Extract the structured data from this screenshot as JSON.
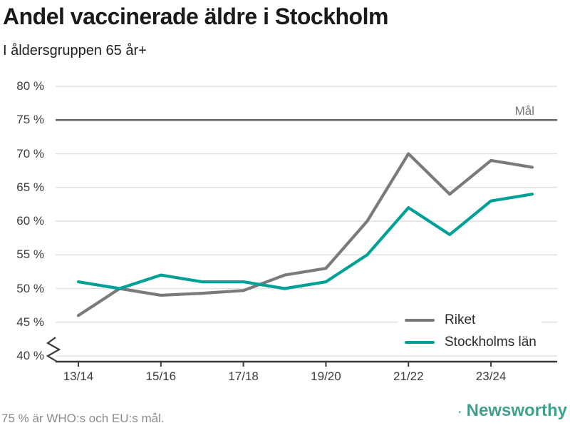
{
  "page": {
    "background": "#ffffff"
  },
  "header": {
    "title": "Andel vaccinerade äldre i Stockholm",
    "subtitle": "I åldersgruppen 65 år+"
  },
  "chart_data": {
    "type": "line",
    "title": "Andel vaccinerade äldre i Stockholm",
    "subtitle": "I åldersgruppen 65 år+",
    "x": [
      "13/14",
      "14/15",
      "15/16",
      "16/17",
      "17/18",
      "18/19",
      "19/20",
      "20/21",
      "21/22",
      "22/23",
      "23/24",
      "24/25"
    ],
    "x_axis": {
      "tick_labels": [
        "13/14",
        "15/16",
        "17/18",
        "19/20",
        "21/22",
        "23/24"
      ],
      "tick_indices": [
        0,
        2,
        4,
        6,
        8,
        10
      ],
      "axis_break_symbol": true
    },
    "y_axis": {
      "ticks": [
        80,
        75,
        70,
        65,
        60,
        55,
        50,
        45,
        40
      ],
      "tick_labels": [
        "80 %",
        "75 %",
        "70 %",
        "65 %",
        "60 %",
        "55 %",
        "50 %",
        "45 %",
        "40 %"
      ],
      "range": [
        40,
        80
      ]
    },
    "series": [
      {
        "name": "Riket",
        "color": "#7a7a7a",
        "values": [
          46,
          50,
          49,
          49.3,
          49.7,
          52,
          53,
          60,
          70,
          64,
          69,
          68
        ]
      },
      {
        "name": "Stockholms län",
        "color": "#00a096",
        "values": [
          51,
          50,
          52,
          51,
          51,
          50,
          51,
          55,
          62,
          58,
          63,
          64
        ]
      }
    ],
    "goal_line": {
      "value": 75,
      "label": "Mål",
      "color": "#676767"
    },
    "grid": true,
    "gridline_color": "#e1e1e1",
    "axis_color": "#3a3a3a",
    "legend_position": "bottom-right"
  },
  "footer": {
    "note": "75 % är WHO:s och EU:s mål.",
    "brand": {
      "name": "Newsworthy",
      "color": "#3fa08e",
      "icon": "bar-chart-speech-bubble-icon"
    }
  }
}
